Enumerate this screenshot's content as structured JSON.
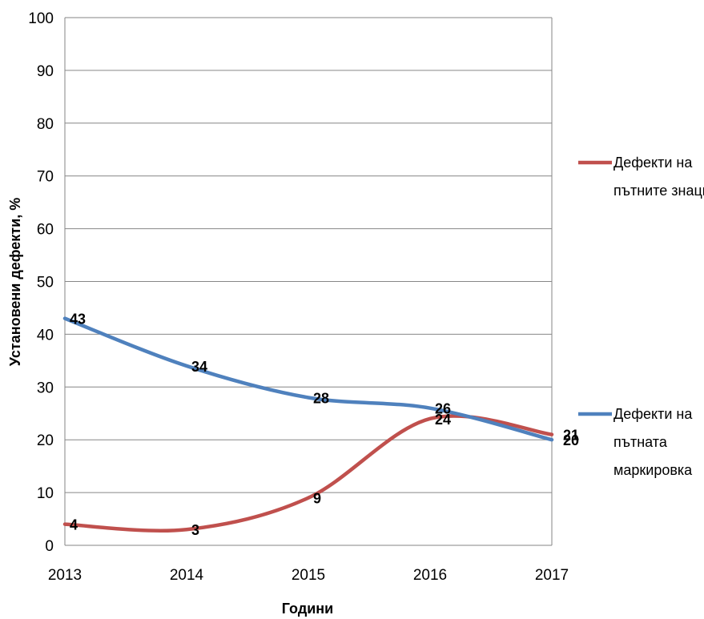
{
  "chart_data": {
    "type": "line",
    "categories": [
      "2013",
      "2014",
      "2015",
      "2016",
      "2017"
    ],
    "yticks": [
      "0",
      "10",
      "20",
      "30",
      "40",
      "50",
      "60",
      "70",
      "80",
      "90",
      "100"
    ],
    "ylim": [
      0,
      100
    ],
    "xlabel": "Години",
    "ylabel": "Установени дефекти, %",
    "grid": true,
    "legend_position": "right",
    "series": [
      {
        "name_lines": [
          "Дефекти на",
          "пътните знаци"
        ],
        "values": [
          4,
          3,
          9,
          24,
          21
        ],
        "labels": [
          "4",
          "3",
          "9",
          "24",
          "21"
        ],
        "color": "#c0504d"
      },
      {
        "name_lines": [
          "Дефекти на",
          "пътната",
          "маркировка"
        ],
        "values": [
          43,
          34,
          28,
          26,
          20
        ],
        "labels": [
          "43",
          "34",
          "28",
          "26",
          "20"
        ],
        "color": "#4f81bd"
      }
    ]
  }
}
